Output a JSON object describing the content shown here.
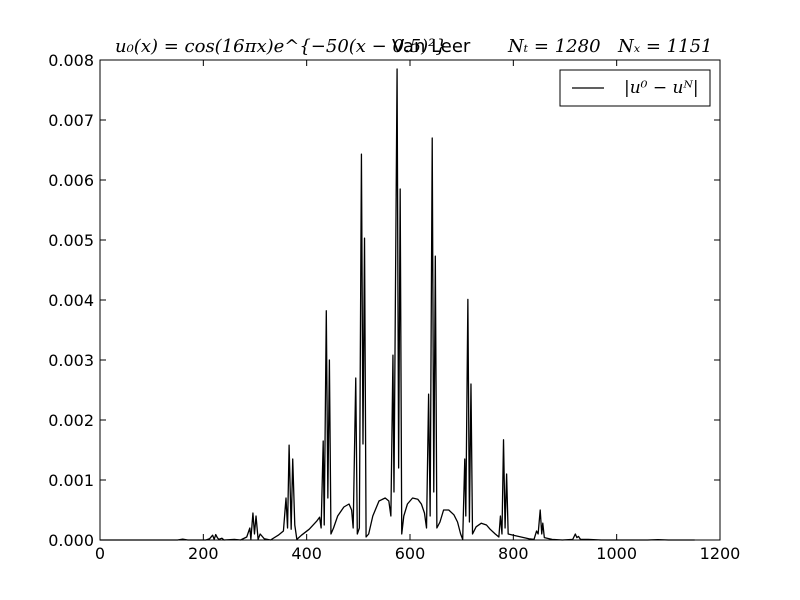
{
  "chart_data": {
    "type": "line",
    "title": {
      "formula": "u₀(x) = cos(16πx)e^{−50(x − 0.5)²}",
      "scheme": "Van Leer",
      "nt": "Nₜ = 1280",
      "nx": "Nₓ = 1151"
    },
    "xlabel": "",
    "ylabel": "",
    "xlim": [
      0,
      1200
    ],
    "ylim": [
      0,
      0.008
    ],
    "xticks": [
      "0",
      "200",
      "400",
      "600",
      "800",
      "1000",
      "1200"
    ],
    "yticks": [
      "0.000",
      "0.001",
      "0.002",
      "0.003",
      "0.004",
      "0.005",
      "0.006",
      "0.007",
      "0.008"
    ],
    "grid": false,
    "legend": {
      "position": "top-right",
      "entries": [
        "|u⁰ − uᴺ|"
      ]
    },
    "series": [
      {
        "name": "|u⁰ − uᴺ|",
        "color": "#000000",
        "points": [
          [
            0,
            0
          ],
          [
            150,
            0
          ],
          [
            160,
            1.5e-05
          ],
          [
            170,
            0
          ],
          [
            205,
            0
          ],
          [
            212,
            2e-05
          ],
          [
            218,
            8e-05
          ],
          [
            221,
            1e-05
          ],
          [
            224,
            9e-05
          ],
          [
            227,
            4e-05
          ],
          [
            230,
            1e-05
          ],
          [
            236,
            3e-05
          ],
          [
            240,
            0
          ],
          [
            260,
            1e-05
          ],
          [
            272,
            0
          ],
          [
            284,
            5e-05
          ],
          [
            290,
            0.0002
          ],
          [
            292,
            1e-05
          ],
          [
            296,
            0.00045
          ],
          [
            299,
            0.0001
          ],
          [
            302,
            0.0004
          ],
          [
            306,
            1e-05
          ],
          [
            310,
            0.0001
          ],
          [
            318,
            2e-05
          ],
          [
            330,
            0
          ],
          [
            345,
            8e-05
          ],
          [
            355,
            0.00015
          ],
          [
            360,
            0.0007
          ],
          [
            363,
            0.0002
          ],
          [
            366,
            0.00158
          ],
          [
            370,
            0.00018
          ],
          [
            373,
            0.00135
          ],
          [
            377,
            0.00025
          ],
          [
            381,
            1e-05
          ],
          [
            390,
            8e-05
          ],
          [
            405,
            0.00018
          ],
          [
            420,
            0.00032
          ],
          [
            425,
            0.00038
          ],
          [
            428,
            0.0002
          ],
          [
            432,
            0.00165
          ],
          [
            434,
            0.00025
          ],
          [
            438,
            0.00382
          ],
          [
            441,
            0.0007
          ],
          [
            444,
            0.003
          ],
          [
            447,
            0.0001
          ],
          [
            452,
            0.0002
          ],
          [
            460,
            0.0004
          ],
          [
            472,
            0.00055
          ],
          [
            482,
            0.0006
          ],
          [
            487,
            0.0005
          ],
          [
            490,
            0.0002
          ],
          [
            495,
            0.0027
          ],
          [
            498,
            0.0001
          ],
          [
            502,
            0.0002
          ],
          [
            506,
            0.00643
          ],
          [
            509,
            0.0016
          ],
          [
            512,
            0.00503
          ],
          [
            515,
            5e-05
          ],
          [
            520,
            0.0001
          ],
          [
            528,
            0.0004
          ],
          [
            540,
            0.00065
          ],
          [
            552,
            0.0007
          ],
          [
            559,
            0.00065
          ],
          [
            563,
            0.0004
          ],
          [
            567,
            0.00308
          ],
          [
            569,
            0.0008
          ],
          [
            575,
            0.00785
          ],
          [
            578,
            0.0012
          ],
          [
            581,
            0.00585
          ],
          [
            584,
            0.0001
          ],
          [
            588,
            0.0004
          ],
          [
            595,
            0.0006
          ],
          [
            605,
            0.0007
          ],
          [
            615,
            0.00068
          ],
          [
            622,
            0.0006
          ],
          [
            628,
            0.00045
          ],
          [
            632,
            0.0002
          ],
          [
            636,
            0.00243
          ],
          [
            639,
            0.0004
          ],
          [
            643,
            0.0067
          ],
          [
            646,
            0.0008
          ],
          [
            649,
            0.00473
          ],
          [
            652,
            0.0002
          ],
          [
            658,
            0.0003
          ],
          [
            665,
            0.0005
          ],
          [
            675,
            0.0005
          ],
          [
            685,
            0.00042
          ],
          [
            692,
            0.0003
          ],
          [
            698,
            0.0001
          ],
          [
            702,
            1e-05
          ],
          [
            706,
            0.00135
          ],
          [
            708,
            0.0004
          ],
          [
            712,
            0.00401
          ],
          [
            715,
            0.0003
          ],
          [
            718,
            0.0026
          ],
          [
            721,
            0.0001
          ],
          [
            728,
            0.00022
          ],
          [
            738,
            0.00028
          ],
          [
            748,
            0.00025
          ],
          [
            755,
            0.00018
          ],
          [
            765,
            0.0001
          ],
          [
            772,
            5e-05
          ],
          [
            775,
            0.0004
          ],
          [
            778,
            0.0001
          ],
          [
            781,
            0.00167
          ],
          [
            784,
            0.0002
          ],
          [
            787,
            0.0011
          ],
          [
            790,
            0.0001
          ],
          [
            800,
            8e-05
          ],
          [
            815,
            5e-05
          ],
          [
            830,
            2e-05
          ],
          [
            840,
            1e-05
          ],
          [
            845,
            0.00015
          ],
          [
            848,
            0.0001
          ],
          [
            852,
            0.0005
          ],
          [
            855,
            0.0001
          ],
          [
            857,
            0.00028
          ],
          [
            860,
            4e-05
          ],
          [
            875,
            1e-05
          ],
          [
            895,
            0
          ],
          [
            915,
            1e-05
          ],
          [
            920,
            0.0001
          ],
          [
            923,
            4e-05
          ],
          [
            926,
            6e-05
          ],
          [
            930,
            1e-05
          ],
          [
            945,
            1e-05
          ],
          [
            970,
            0
          ],
          [
            1060,
            0
          ],
          [
            1080,
            6e-06
          ],
          [
            1100,
            0
          ],
          [
            1151,
            0
          ]
        ]
      }
    ]
  }
}
